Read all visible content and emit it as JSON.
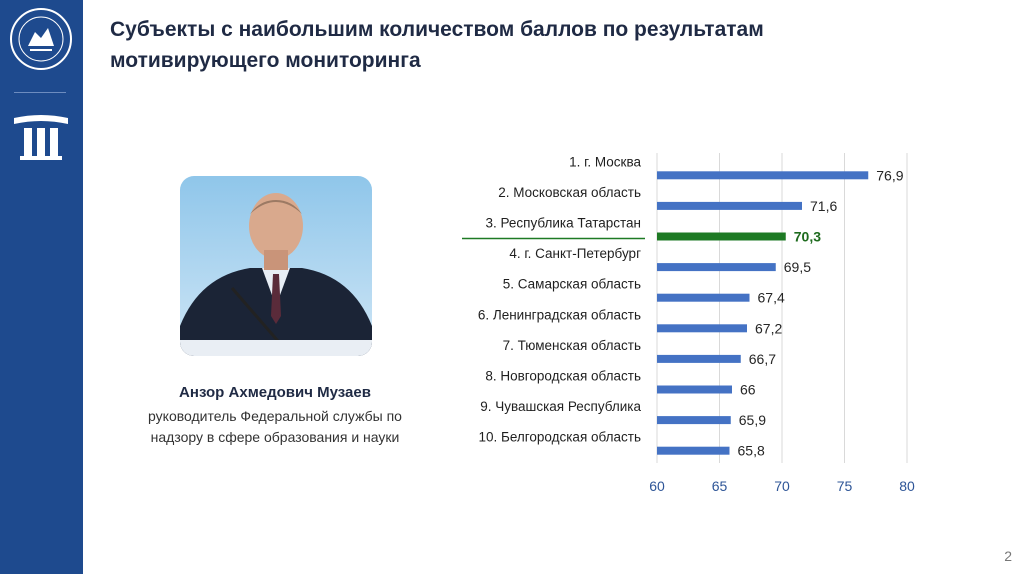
{
  "slide": {
    "title_line1": "Субъекты с наибольшим количеством баллов по результатам",
    "title_line2": "мотивирующего мониторинга",
    "page_number": "2"
  },
  "person": {
    "name": "Анзор Ахмедович Музаев",
    "role_line1": "руководитель Федеральной службы по",
    "role_line2": "надзору в сфере образования и науки"
  },
  "colors": {
    "sidebar": "#1e4a8e",
    "bar": "#4472c4",
    "highlight_bar": "#1e7a24",
    "highlight_text": "#1e6b1e",
    "axis_text": "#2e5597"
  },
  "chart_data": {
    "type": "bar",
    "orientation": "horizontal",
    "categories": [
      "1. г. Москва",
      "2. Московская область",
      "3. Республика Татарстан",
      "4. г. Санкт-Петербург",
      "5. Самарская область",
      "6. Ленинградская область",
      "7. Тюменская область",
      "8. Новгородская область",
      "9. Чувашская Республика",
      "10. Белгородская область"
    ],
    "values": [
      76.9,
      71.6,
      70.3,
      69.5,
      67.4,
      67.2,
      66.7,
      66,
      65.9,
      65.8
    ],
    "value_labels": [
      "76,9",
      "71,6",
      "70,3",
      "69,5",
      "67,4",
      "67,2",
      "66,7",
      "66",
      "65,9",
      "65,8"
    ],
    "highlight_index": 2,
    "xlim": [
      60,
      80
    ],
    "xticks": [
      "60",
      "65",
      "70",
      "75",
      "80"
    ],
    "grid": true
  }
}
